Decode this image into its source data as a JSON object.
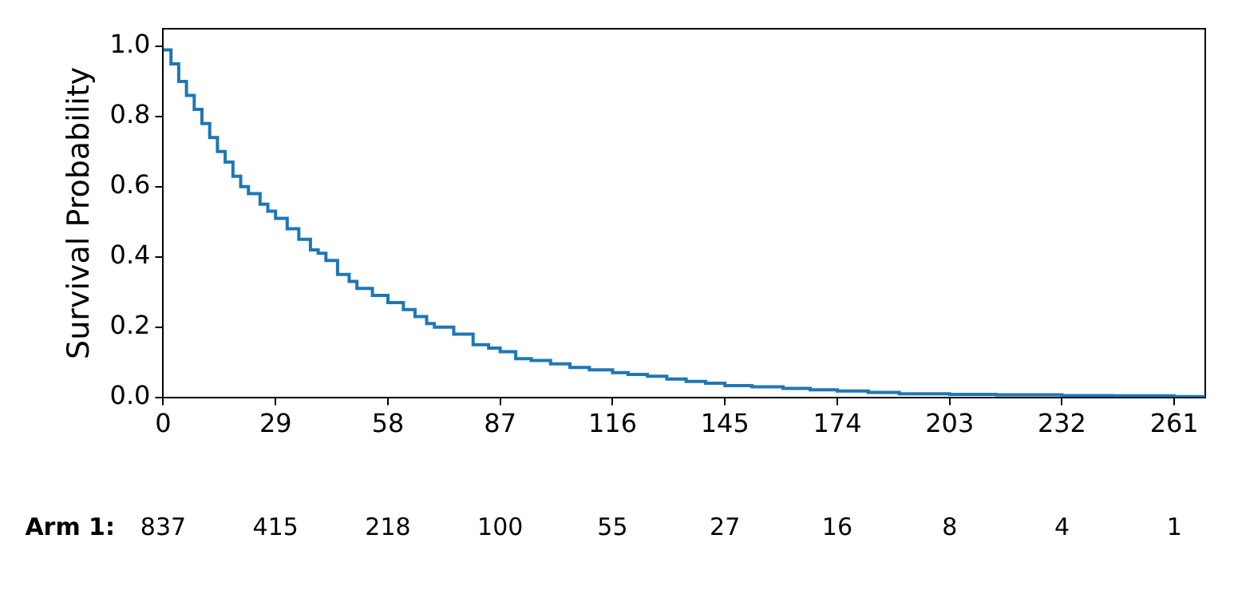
{
  "chart_data": {
    "type": "step",
    "ylabel": "Survival Probability",
    "x": [
      0,
      2,
      4,
      6,
      8,
      10,
      12,
      14,
      16,
      18,
      20,
      22,
      25,
      27,
      29,
      32,
      35,
      38,
      40,
      42,
      45,
      48,
      50,
      54,
      58,
      62,
      65,
      68,
      70,
      75,
      80,
      84,
      87,
      91,
      95,
      100,
      105,
      110,
      116,
      120,
      125,
      130,
      135,
      140,
      145,
      152,
      160,
      167,
      174,
      182,
      190,
      203,
      215,
      232,
      245,
      261,
      269
    ],
    "series": [
      {
        "color": "#1f77b4",
        "values": [
          0.99,
          0.95,
          0.9,
          0.86,
          0.82,
          0.78,
          0.74,
          0.7,
          0.67,
          0.63,
          0.6,
          0.58,
          0.55,
          0.53,
          0.51,
          0.48,
          0.45,
          0.42,
          0.41,
          0.39,
          0.35,
          0.33,
          0.31,
          0.29,
          0.27,
          0.25,
          0.23,
          0.21,
          0.2,
          0.18,
          0.15,
          0.14,
          0.13,
          0.11,
          0.105,
          0.095,
          0.085,
          0.078,
          0.07,
          0.065,
          0.06,
          0.052,
          0.045,
          0.04,
          0.033,
          0.03,
          0.025,
          0.021,
          0.018,
          0.014,
          0.01,
          0.008,
          0.007,
          0.005,
          0.004,
          0.002,
          0.002
        ]
      }
    ],
    "xlim": [
      0,
      269
    ],
    "xticks": [
      0,
      29,
      58,
      87,
      116,
      145,
      174,
      203,
      232,
      261
    ],
    "ylim": [
      0,
      1.05
    ],
    "yticks": [
      {
        "value": 0,
        "label": "0.0"
      },
      {
        "value": 0.2,
        "label": "0.2"
      },
      {
        "value": 0.4,
        "label": "0.4"
      },
      {
        "value": 0.6,
        "label": "0.6"
      },
      {
        "value": 0.8,
        "label": "0.8"
      },
      {
        "value": 1,
        "label": "1.0"
      }
    ],
    "grid": false,
    "legend": false,
    "annotations": [
      "Arm 1:",
      "837",
      "415",
      "218",
      "100",
      "55",
      "27",
      "16",
      "8",
      "4",
      "1"
    ]
  }
}
